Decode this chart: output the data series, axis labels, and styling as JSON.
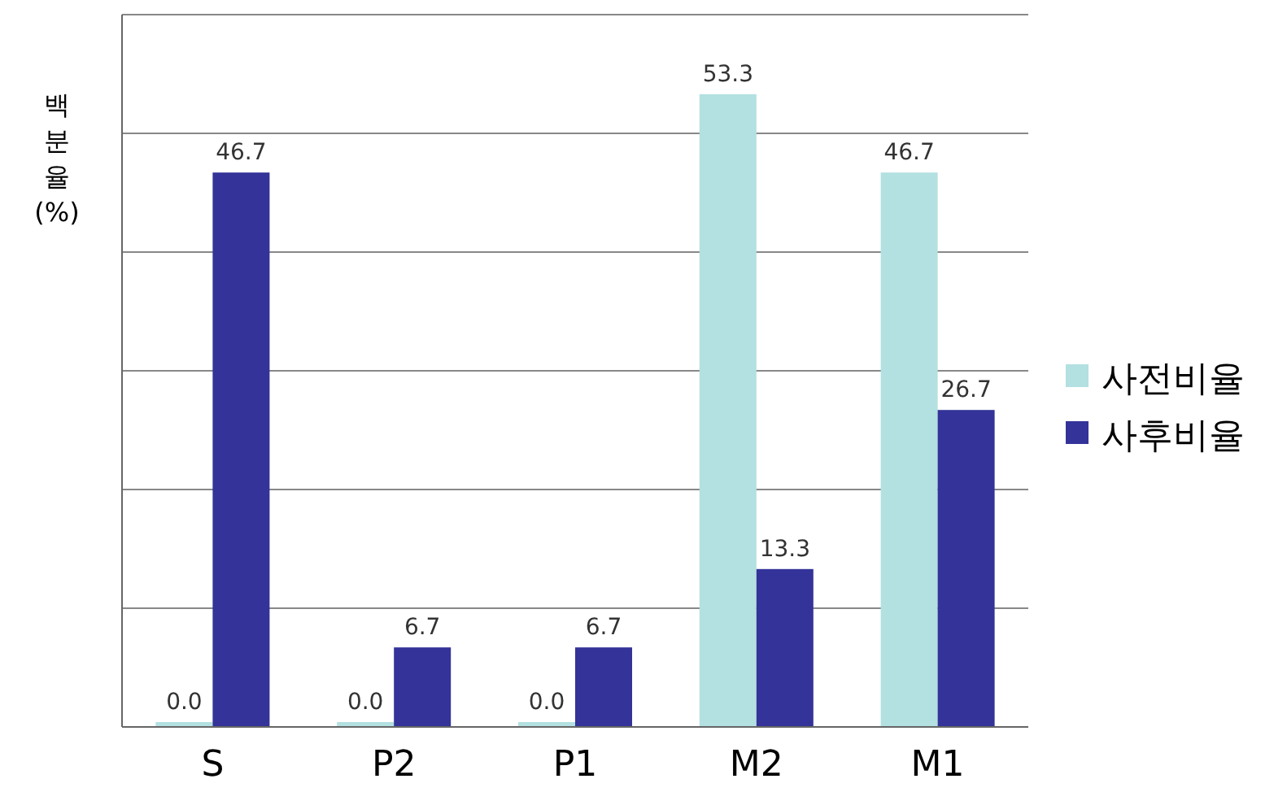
{
  "chart_data": {
    "type": "bar",
    "ylabel": "백분율 (%)",
    "categories": [
      "S",
      "P2",
      "P1",
      "M2",
      "M1"
    ],
    "series": [
      {
        "name": "사전비율",
        "color": "#b3e0e0",
        "values": [
          0.0,
          0.0,
          0.0,
          53.3,
          46.7
        ],
        "value_labels": [
          "0.0",
          "0.0",
          "0.0",
          "53.3",
          "46.7"
        ]
      },
      {
        "name": "사후비율",
        "color": "#333399",
        "values": [
          46.7,
          6.7,
          6.7,
          13.3,
          26.7
        ],
        "value_labels": [
          "46.7",
          "6.7",
          "6.7",
          "13.3",
          "26.7"
        ]
      }
    ],
    "ylim": [
      0,
      60
    ],
    "yticks": [
      {
        "value": 0,
        "label": null
      },
      {
        "value": 10,
        "label": null
      },
      {
        "value": 20,
        "label": null
      },
      {
        "value": 30,
        "label": null
      },
      {
        "value": 40,
        "label": null
      },
      {
        "value": 50,
        "label": null
      },
      {
        "value": 60,
        "label": null
      }
    ],
    "grid": "y",
    "legend": "right"
  }
}
